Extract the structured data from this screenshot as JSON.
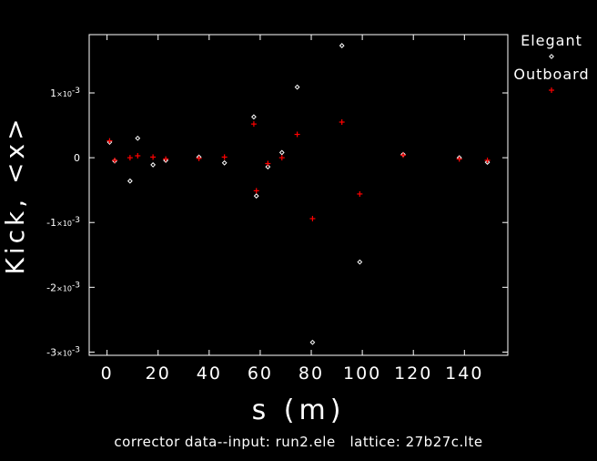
{
  "chart_data": {
    "type": "scatter",
    "title": "",
    "xlabel": "s (m)",
    "ylabel": "Kick, <x>",
    "xlim": [
      -7,
      157
    ],
    "ylim": [
      -0.00305,
      0.0019
    ],
    "xticks": [
      {
        "value": 0,
        "label": "0"
      },
      {
        "value": 20,
        "label": "20"
      },
      {
        "value": 40,
        "label": "40"
      },
      {
        "value": 60,
        "label": "60"
      },
      {
        "value": 80,
        "label": "80"
      },
      {
        "value": 100,
        "label": "100"
      },
      {
        "value": 120,
        "label": "120"
      },
      {
        "value": 140,
        "label": "140"
      }
    ],
    "yticks": [
      {
        "value": 0.001,
        "mant": "1",
        "exp": "-3"
      },
      {
        "value": 0,
        "mant": "0",
        "exp": ""
      },
      {
        "value": -0.001,
        "mant": "-1",
        "exp": "-3"
      },
      {
        "value": -0.002,
        "mant": "-2",
        "exp": "-3"
      },
      {
        "value": -0.003,
        "mant": "-3",
        "exp": "-3"
      }
    ],
    "series": [
      {
        "name": "Elegant",
        "marker": "diamond",
        "color": "#ffffff",
        "points": [
          [
            1,
            0.00024
          ],
          [
            3,
            -5e-05
          ],
          [
            9,
            -0.00036
          ],
          [
            12,
            0.0003
          ],
          [
            18,
            -0.00011
          ],
          [
            23,
            -4e-05
          ],
          [
            36,
            1e-05
          ],
          [
            46,
            -8e-05
          ],
          [
            57.5,
            0.00063
          ],
          [
            58.5,
            -0.00059
          ],
          [
            63,
            -0.00014
          ],
          [
            68.5,
            8e-05
          ],
          [
            74.5,
            0.00109
          ],
          [
            80.5,
            -0.00285
          ],
          [
            92,
            0.00173
          ],
          [
            99,
            -0.00161
          ],
          [
            116,
            5e-05
          ],
          [
            138,
            0.0
          ],
          [
            149,
            -7e-05
          ]
        ]
      },
      {
        "name": "Outboard",
        "marker": "plus",
        "color": "#ff0000",
        "points": [
          [
            1,
            0.00026
          ],
          [
            3,
            -4e-05
          ],
          [
            9,
            0.0
          ],
          [
            12,
            3e-05
          ],
          [
            18,
            1e-05
          ],
          [
            23,
            -2e-05
          ],
          [
            36,
            -1e-05
          ],
          [
            46,
            1e-05
          ],
          [
            57.5,
            0.00052
          ],
          [
            58.5,
            -0.00051
          ],
          [
            63,
            -9e-05
          ],
          [
            68.5,
            0.0
          ],
          [
            74.5,
            0.00036
          ],
          [
            80.5,
            -0.00094
          ],
          [
            92,
            0.00055
          ],
          [
            99,
            -0.00056
          ],
          [
            116,
            4e-05
          ],
          [
            138,
            -2e-05
          ],
          [
            149,
            -4e-05
          ]
        ]
      }
    ],
    "grid": false,
    "legend_position": "outside-top-right"
  },
  "caption": "corrector data--input: run2.ele   lattice: 27b27c.lte"
}
